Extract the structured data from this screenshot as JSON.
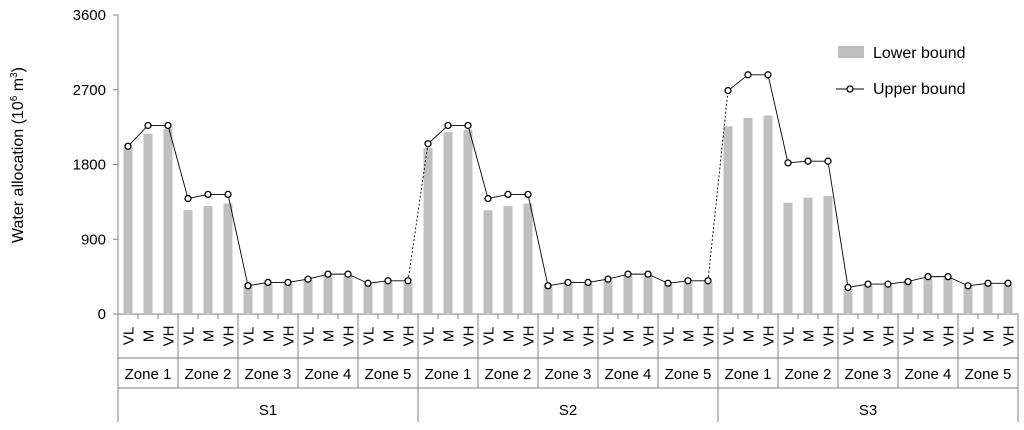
{
  "chart_data": {
    "type": "bar",
    "ylabel": "Water allocation (10",
    "ylabel_exp": "6",
    "ylabel_unit": " m",
    "ylabel_unit_exp": "3",
    "ylabel_close": ")",
    "ylim": [
      0,
      3600
    ],
    "yticks": [
      "0",
      "900",
      "1800",
      "2700",
      "3600"
    ],
    "levels": [
      "VL",
      "M",
      "VH"
    ],
    "zones": [
      "Zone 1",
      "Zone 2",
      "Zone 3",
      "Zone 4",
      "Zone 5"
    ],
    "scenarios": [
      "S1",
      "S2",
      "S3"
    ],
    "legend": {
      "position": "top-right",
      "lower_label": "Lower bound",
      "upper_label": "Upper bound"
    },
    "colors": {
      "bar": "#c0c0c0",
      "line": "#000000",
      "axis": "#808080"
    },
    "series": [
      {
        "name": "Lower bound",
        "values": [
          2000,
          2170,
          2230,
          1250,
          1300,
          1330,
          330,
          360,
          360,
          410,
          460,
          460,
          350,
          380,
          380,
          2000,
          2190,
          2220,
          1250,
          1300,
          1330,
          330,
          360,
          360,
          410,
          460,
          460,
          350,
          380,
          380,
          2260,
          2360,
          2390,
          1340,
          1400,
          1420,
          300,
          340,
          340,
          380,
          430,
          430,
          320,
          350,
          350
        ]
      },
      {
        "name": "Upper bound",
        "values": [
          2020,
          2270,
          2270,
          1390,
          1440,
          1440,
          340,
          380,
          380,
          420,
          480,
          480,
          370,
          400,
          400,
          2050,
          2270,
          2270,
          1390,
          1440,
          1440,
          340,
          380,
          380,
          420,
          480,
          480,
          370,
          400,
          400,
          2690,
          2880,
          2880,
          1820,
          1840,
          1840,
          320,
          360,
          360,
          390,
          450,
          450,
          340,
          370,
          370
        ]
      }
    ]
  }
}
